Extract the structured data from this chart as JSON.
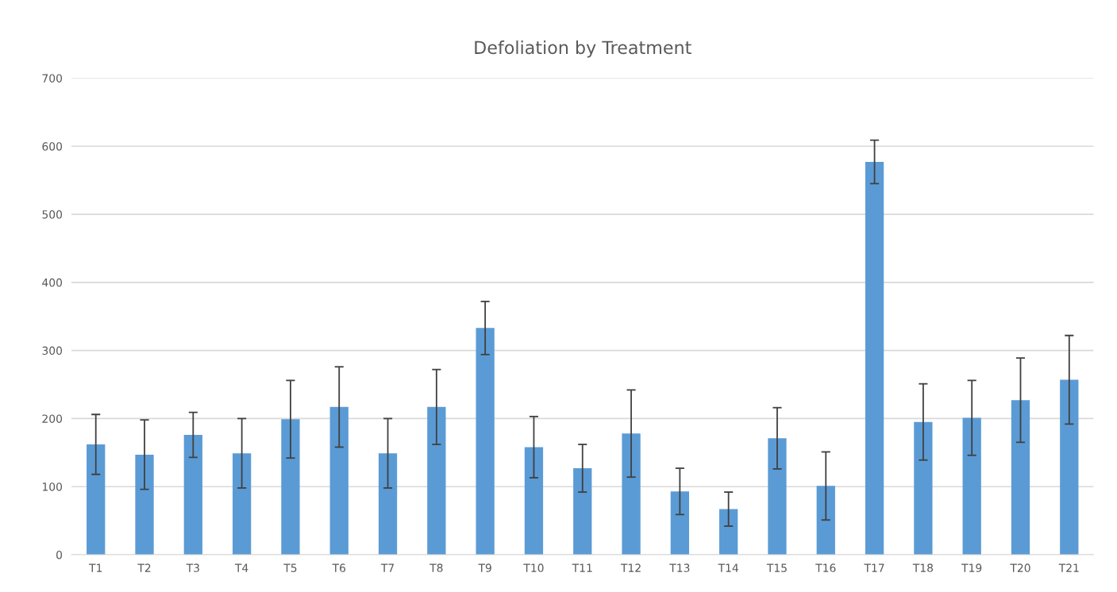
{
  "chart_data": {
    "type": "bar",
    "title": "Defoliation by Treatment",
    "categories": [
      "T1",
      "T2",
      "T3",
      "T4",
      "T5",
      "T6",
      "T7",
      "T8",
      "T9",
      "T10",
      "T11",
      "T12",
      "T13",
      "T14",
      "T15",
      "T16",
      "T17",
      "T18",
      "T19",
      "T20",
      "T21"
    ],
    "values": [
      162,
      147,
      176,
      149,
      199,
      217,
      149,
      217,
      333,
      158,
      127,
      178,
      93,
      67,
      171,
      101,
      577,
      195,
      201,
      227,
      257
    ],
    "errors": [
      44,
      51,
      33,
      51,
      57,
      59,
      51,
      55,
      39,
      45,
      35,
      64,
      34,
      25,
      45,
      50,
      32,
      56,
      55,
      62,
      65
    ],
    "color": "#5b9bd5",
    "ylim": [
      0,
      700
    ],
    "yticks": [
      0,
      100,
      200,
      300,
      400,
      500,
      600,
      700
    ],
    "grid": "y"
  }
}
